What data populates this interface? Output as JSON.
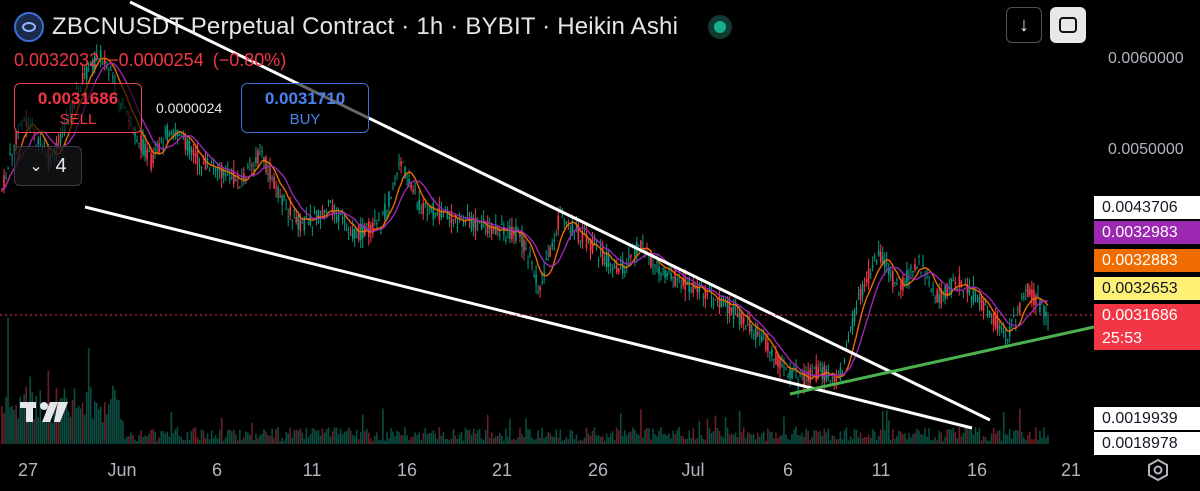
{
  "header": {
    "title": "ZBCNUSDT Perpetual Contract · 1h · BYBIT · Heikin Ashi",
    "ohlc": [
      "0.0032032",
      "−0.0000254",
      "(−0.80%)"
    ]
  },
  "trade": {
    "sell_price": "0.0031686",
    "sell_label": "SELL",
    "spread": "0.0000024",
    "buy_price": "0.0031710",
    "buy_label": "BUY"
  },
  "indicators": {
    "count": "4"
  },
  "price_axis": {
    "ticks": [
      "0.0060000",
      "0.0050000"
    ],
    "labels": [
      {
        "text": "0.0043706",
        "bg": "#ffffff",
        "fg": "#131722"
      },
      {
        "text": "0.0032983",
        "bg": "#9c27b0",
        "fg": "#ffffff"
      },
      {
        "text": "0.0032883",
        "bg": "#ef6c00",
        "fg": "#ffffff"
      },
      {
        "text": "0.0032653",
        "bg": "#fff176",
        "fg": "#131722"
      },
      {
        "text": "0.0031686",
        "bg": "#f23645",
        "fg": "#ffffff"
      },
      {
        "text": "25:53",
        "bg": "#f23645",
        "fg": "#ffffff"
      },
      {
        "text": "0.0019939",
        "bg": "#ffffff",
        "fg": "#131722"
      },
      {
        "text": "0.0018978",
        "bg": "#ffffff",
        "fg": "#131722"
      }
    ]
  },
  "time_axis": [
    "27",
    "Jun",
    "6",
    "11",
    "16",
    "21",
    "26",
    "Jul",
    "6",
    "11",
    "16",
    "21"
  ],
  "colors": {
    "up": "#089981",
    "down": "#f23645",
    "ma_purple": "#9c27b0",
    "ma_orange": "#ef6c00",
    "trend_green": "#4caf50"
  },
  "icons": {
    "download": "download-icon",
    "fullscreen": "fullscreen-icon",
    "settings": "settings-icon",
    "logo": "tradingview-logo-icon"
  },
  "chart_data": {
    "type": "candlestick",
    "symbol": "ZBCNUSDT",
    "interval": "1h",
    "ylim": [
      0.0018,
      0.0064
    ],
    "x_labels": [
      "27",
      "Jun",
      "6",
      "11",
      "16",
      "21",
      "26",
      "Jul",
      "6",
      "11",
      "16",
      "21"
    ],
    "path": [
      [
        0,
        0.0046
      ],
      [
        2,
        0.0054
      ],
      [
        5,
        0.0049
      ],
      [
        8,
        0.0058
      ],
      [
        10,
        0.0061
      ],
      [
        12,
        0.0055
      ],
      [
        15,
        0.0049
      ],
      [
        17,
        0.0053
      ],
      [
        20,
        0.0049
      ],
      [
        24,
        0.0047
      ],
      [
        26,
        0.005
      ],
      [
        28,
        0.0045
      ],
      [
        30,
        0.0042
      ],
      [
        33,
        0.0044
      ],
      [
        35,
        0.0041
      ],
      [
        38,
        0.0042
      ],
      [
        40,
        0.0049
      ],
      [
        42,
        0.0044
      ],
      [
        45,
        0.0043
      ],
      [
        48,
        0.0042
      ],
      [
        52,
        0.0041
      ],
      [
        54,
        0.0035
      ],
      [
        56,
        0.0043
      ],
      [
        59,
        0.004
      ],
      [
        62,
        0.0037
      ],
      [
        64,
        0.004
      ],
      [
        66,
        0.0037
      ],
      [
        70,
        0.0035
      ],
      [
        73,
        0.0033
      ],
      [
        76,
        0.003
      ],
      [
        78,
        0.0027
      ],
      [
        80,
        0.0025
      ],
      [
        82,
        0.0026
      ],
      [
        84,
        0.0025
      ],
      [
        86,
        0.0034
      ],
      [
        88,
        0.0039
      ],
      [
        90,
        0.0035
      ],
      [
        92,
        0.0038
      ],
      [
        94,
        0.0034
      ],
      [
        96,
        0.0036
      ],
      [
        98,
        0.0034
      ],
      [
        100,
        0.0031
      ],
      [
        101,
        0.003
      ],
      [
        103,
        0.0035
      ],
      [
        105,
        0.0032
      ]
    ],
    "volume": "low",
    "current_price": 0.0031686
  }
}
